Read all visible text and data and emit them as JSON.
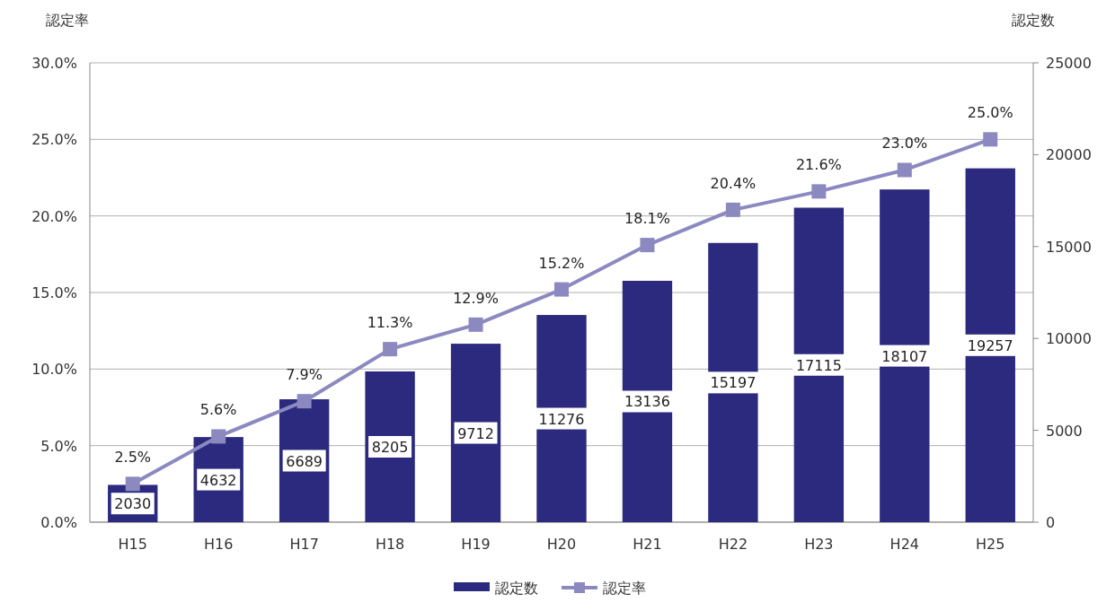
{
  "chart_data": {
    "type": "bar",
    "ylabel": "認定率",
    "y2label": "認定数",
    "categories": [
      "H15",
      "H16",
      "H17",
      "H18",
      "H19",
      "H20",
      "H21",
      "H22",
      "H23",
      "H24",
      "H25"
    ],
    "series": [
      {
        "name": "認定数",
        "axis": "y2",
        "color": "#2b2a7e",
        "values": [
          2030,
          4632,
          6689,
          8205,
          9712,
          11276,
          13136,
          15197,
          17115,
          18107,
          19257
        ],
        "value_labels": [
          "2030",
          "4632",
          "6689",
          "8205",
          "9712",
          "11276",
          "13136",
          "15197",
          "17115",
          "18107",
          "19257"
        ]
      },
      {
        "name": "認定率",
        "type": "line",
        "axis": "y",
        "color": "#8b89c0",
        "marker": "square",
        "values": [
          2.5,
          5.6,
          7.9,
          11.3,
          12.9,
          15.2,
          18.1,
          20.4,
          21.6,
          23.0,
          25.0
        ],
        "value_labels": [
          "2.5%",
          "5.6%",
          "7.9%",
          "11.3%",
          "12.9%",
          "15.2%",
          "18.1%",
          "20.4%",
          "21.6%",
          "23.0%",
          "25.0%"
        ]
      }
    ],
    "ylim": [
      0,
      30
    ],
    "yticks": [
      {
        "value": 0,
        "label": "0.0%"
      },
      {
        "value": 5,
        "label": "5.0%"
      },
      {
        "value": 10,
        "label": "10.0%"
      },
      {
        "value": 15,
        "label": "15.0%"
      },
      {
        "value": 20,
        "label": "20.0%"
      },
      {
        "value": 25,
        "label": "25.0%"
      },
      {
        "value": 30,
        "label": "30.0%"
      }
    ],
    "y2lim": [
      0,
      25000
    ],
    "y2ticks": [
      0,
      5000,
      10000,
      15000,
      20000,
      25000
    ],
    "grid": "y",
    "legend": "bottom"
  }
}
